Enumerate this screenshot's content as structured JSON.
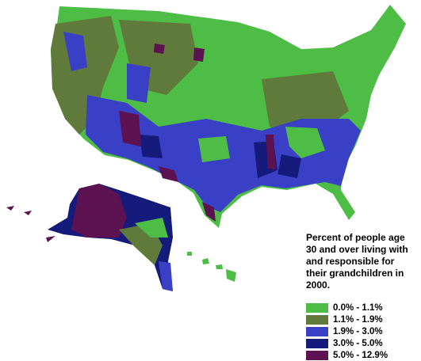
{
  "legend": {
    "title": "Percent of people age 30 and over living with and responsible for their grandchildren in 2000.",
    "items": [
      {
        "label": "0.0% - 1.1%",
        "color": "#4dbd45"
      },
      {
        "label": "1.1% - 1.9%",
        "color": "#5f7a3b"
      },
      {
        "label": "1.9% - 3.0%",
        "color": "#3a40c6"
      },
      {
        "label": "3.0% - 5.0%",
        "color": "#151b7a"
      },
      {
        "label": "5.0% - 12.9%",
        "color": "#5c1150"
      }
    ]
  }
}
